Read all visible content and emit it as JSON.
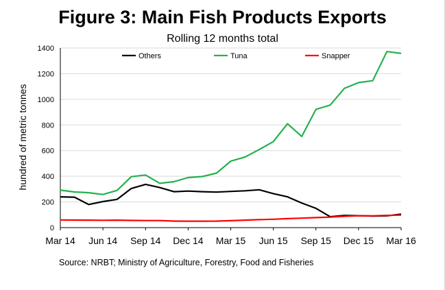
{
  "title": "Figure 3: Main Fish Products Exports",
  "subtitle": "Rolling 12 months total",
  "source": "Source: NRBT; Ministry of Agriculture, Forestry, Food and Fisheries",
  "chart_data": {
    "type": "line",
    "title": "Figure 3: Main Fish Products Exports",
    "subtitle": "Rolling 12 months total",
    "xlabel": "",
    "ylabel": "hundred of metric tonnes",
    "ylim": [
      0,
      1400
    ],
    "yticks": [
      0,
      200,
      400,
      600,
      800,
      1000,
      1200,
      1400
    ],
    "xtick_labels": [
      "Mar 14",
      "Jun 14",
      "Sep 14",
      "Dec 14",
      "Mar 15",
      "Jun 15",
      "Sep 15",
      "Dec 15",
      "Mar 16"
    ],
    "x": [
      "Mar 14",
      "Apr 14",
      "May 14",
      "Jun 14",
      "Jul 14",
      "Aug 14",
      "Sep 14",
      "Oct 14",
      "Nov 14",
      "Dec 14",
      "Jan 15",
      "Feb 15",
      "Mar 15",
      "Apr 15",
      "May 15",
      "Jun 15",
      "Jul 15",
      "Aug 15",
      "Sep 15",
      "Oct 15",
      "Nov 15",
      "Dec 15",
      "Jan 16",
      "Feb 16",
      "Mar 16"
    ],
    "grid": "horizontal",
    "legend_position": "top",
    "series": [
      {
        "name": "Others",
        "color": "#000000",
        "values": [
          240,
          237,
          180,
          203,
          220,
          305,
          337,
          312,
          280,
          285,
          280,
          277,
          282,
          287,
          295,
          265,
          240,
          192,
          150,
          85,
          95,
          93,
          90,
          92,
          105
        ]
      },
      {
        "name": "Tuna",
        "color": "#22b14c",
        "values": [
          292,
          278,
          272,
          258,
          290,
          397,
          410,
          345,
          358,
          390,
          398,
          425,
          518,
          550,
          608,
          670,
          810,
          710,
          922,
          955,
          1085,
          1130,
          1145,
          1372,
          1358
        ]
      },
      {
        "name": "Snapper",
        "color": "#ff0000",
        "values": [
          60,
          59,
          58,
          57,
          58,
          56,
          55,
          55,
          51,
          50,
          50,
          51,
          54,
          58,
          62,
          65,
          70,
          74,
          78,
          82,
          88,
          93,
          92,
          95,
          98
        ]
      }
    ]
  }
}
